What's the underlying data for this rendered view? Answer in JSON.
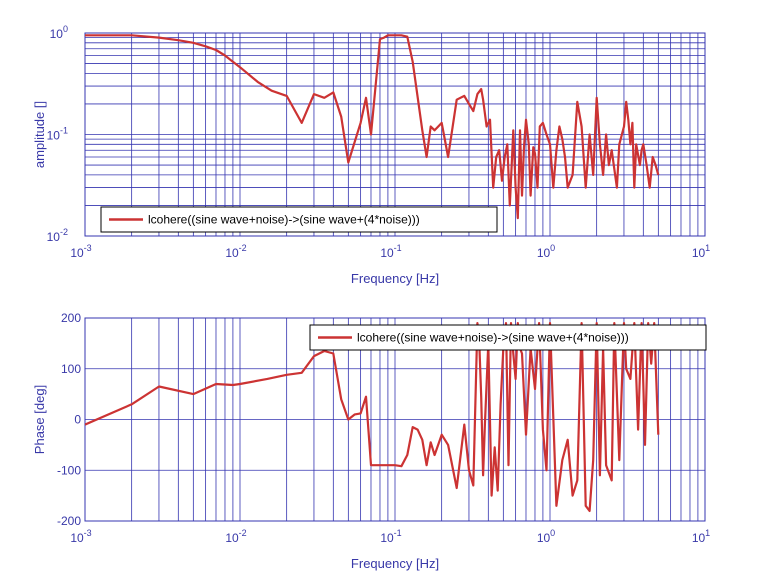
{
  "chart_data": [
    {
      "type": "line",
      "xscale": "log",
      "yscale": "log",
      "xlim": [
        0.001,
        10
      ],
      "ylim": [
        0.01,
        1
      ],
      "grid": true,
      "xlabel": "Frequency  [Hz]",
      "ylabel": "amplitude  []",
      "legend": "bottom-left",
      "xticks": [
        {
          "base": "10",
          "exp": "-3",
          "value": 0.001
        },
        {
          "base": "10",
          "exp": "-2",
          "value": 0.01
        },
        {
          "base": "10",
          "exp": "-1",
          "value": 0.1
        },
        {
          "base": "10",
          "exp": "0",
          "value": 1
        },
        {
          "base": "10",
          "exp": "1",
          "value": 10
        }
      ],
      "yticks": [
        {
          "base": "10",
          "exp": "-2",
          "value": 0.01
        },
        {
          "base": "10",
          "exp": "-1",
          "value": 0.1
        },
        {
          "base": "10",
          "exp": "0",
          "value": 1
        }
      ],
      "series": [
        {
          "name": "lcohere((sine wave+noise)->(sine wave+(4*noise)))",
          "color": "#cc3333",
          "x": [
            0.001,
            0.002,
            0.003,
            0.004,
            0.005,
            0.006,
            0.007,
            0.008,
            0.009,
            0.01,
            0.013,
            0.016,
            0.02,
            0.025,
            0.03,
            0.035,
            0.04,
            0.045,
            0.05,
            0.06,
            0.065,
            0.07,
            0.08,
            0.085,
            0.09,
            0.1,
            0.11,
            0.12,
            0.13,
            0.15,
            0.16,
            0.17,
            0.18,
            0.2,
            0.22,
            0.25,
            0.28,
            0.3,
            0.32,
            0.34,
            0.36,
            0.37,
            0.39,
            0.41,
            0.43,
            0.45,
            0.47,
            0.49,
            0.51,
            0.53,
            0.55,
            0.58,
            0.6,
            0.62,
            0.64,
            0.66,
            0.68,
            0.7,
            0.73,
            0.75,
            0.78,
            0.8,
            0.83,
            0.86,
            0.9,
            0.95,
            1.0,
            1.05,
            1.1,
            1.15,
            1.2,
            1.25,
            1.3,
            1.4,
            1.5,
            1.6,
            1.7,
            1.8,
            1.9,
            2.0,
            2.1,
            2.2,
            2.3,
            2.4,
            2.5,
            2.7,
            2.8,
            3.0,
            3.1,
            3.2,
            3.3,
            3.4,
            3.5,
            3.6,
            3.8,
            3.9,
            4.0,
            4.2,
            4.4,
            4.6,
            4.8,
            5.0
          ],
          "values": [
            0.95,
            0.95,
            0.9,
            0.85,
            0.8,
            0.74,
            0.68,
            0.6,
            0.52,
            0.46,
            0.33,
            0.27,
            0.24,
            0.13,
            0.25,
            0.23,
            0.26,
            0.15,
            0.053,
            0.13,
            0.23,
            0.1,
            0.87,
            0.9,
            0.95,
            0.95,
            0.95,
            0.92,
            0.52,
            0.11,
            0.06,
            0.12,
            0.11,
            0.13,
            0.06,
            0.22,
            0.24,
            0.2,
            0.17,
            0.25,
            0.28,
            0.22,
            0.12,
            0.14,
            0.03,
            0.06,
            0.07,
            0.035,
            0.06,
            0.08,
            0.02,
            0.11,
            0.03,
            0.015,
            0.11,
            0.025,
            0.075,
            0.14,
            0.08,
            0.025,
            0.075,
            0.065,
            0.03,
            0.12,
            0.13,
            0.1,
            0.08,
            0.03,
            0.07,
            0.12,
            0.09,
            0.06,
            0.03,
            0.04,
            0.21,
            0.12,
            0.03,
            0.1,
            0.04,
            0.23,
            0.08,
            0.04,
            0.1,
            0.05,
            0.07,
            0.03,
            0.08,
            0.12,
            0.21,
            0.14,
            0.08,
            0.13,
            0.03,
            0.08,
            0.05,
            0.07,
            0.08,
            0.05,
            0.03,
            0.06,
            0.05,
            0.04
          ]
        }
      ]
    },
    {
      "type": "line",
      "xscale": "log",
      "yscale": "linear",
      "xlim": [
        0.001,
        10
      ],
      "ylim": [
        -200,
        200
      ],
      "grid": true,
      "xlabel": "Frequency  [Hz]",
      "ylabel": "Phase [deg]",
      "legend": "top-right",
      "xticks": [
        {
          "base": "10",
          "exp": "-3",
          "value": 0.001
        },
        {
          "base": "10",
          "exp": "-2",
          "value": 0.01
        },
        {
          "base": "10",
          "exp": "-1",
          "value": 0.1
        },
        {
          "base": "10",
          "exp": "0",
          "value": 1
        },
        {
          "base": "10",
          "exp": "1",
          "value": 10
        }
      ],
      "yticks": [
        {
          "label": "200",
          "value": 200
        },
        {
          "label": "100",
          "value": 100
        },
        {
          "label": "0",
          "value": 0
        },
        {
          "label": "-100",
          "value": -100
        },
        {
          "label": "-200",
          "value": -200
        }
      ],
      "series": [
        {
          "name": "lcohere((sine wave+noise)->(sine wave+(4*noise)))",
          "color": "#cc3333",
          "x": [
            0.001,
            0.002,
            0.003,
            0.005,
            0.007,
            0.009,
            0.01,
            0.015,
            0.02,
            0.025,
            0.03,
            0.035,
            0.04,
            0.045,
            0.05,
            0.055,
            0.06,
            0.065,
            0.07,
            0.08,
            0.09,
            0.1,
            0.11,
            0.12,
            0.13,
            0.14,
            0.15,
            0.16,
            0.17,
            0.18,
            0.2,
            0.22,
            0.25,
            0.28,
            0.3,
            0.32,
            0.34,
            0.35,
            0.36,
            0.37,
            0.38,
            0.4,
            0.42,
            0.44,
            0.46,
            0.48,
            0.5,
            0.52,
            0.54,
            0.56,
            0.58,
            0.6,
            0.62,
            0.64,
            0.66,
            0.7,
            0.75,
            0.8,
            0.85,
            0.9,
            0.95,
            1.0,
            1.1,
            1.2,
            1.3,
            1.4,
            1.5,
            1.6,
            1.7,
            1.8,
            1.9,
            2.0,
            2.1,
            2.2,
            2.3,
            2.5,
            2.6,
            2.8,
            3.0,
            3.1,
            3.3,
            3.5,
            3.7,
            3.9,
            4.1,
            4.3,
            4.5,
            4.7,
            5.0
          ],
          "values": [
            -10,
            30,
            65,
            50,
            70,
            68,
            70,
            80,
            88,
            92,
            125,
            135,
            130,
            40,
            0,
            10,
            12,
            45,
            -90,
            -90,
            -90,
            -90,
            -92,
            -70,
            -15,
            -20,
            -40,
            -90,
            -45,
            -70,
            -30,
            -50,
            -135,
            -10,
            -100,
            -130,
            190,
            150,
            45,
            -110,
            -10,
            150,
            -150,
            -55,
            -140,
            30,
            140,
            190,
            -90,
            190,
            130,
            80,
            190,
            140,
            130,
            -30,
            140,
            60,
            190,
            -20,
            -100,
            190,
            -170,
            -80,
            -40,
            -150,
            -120,
            190,
            -170,
            -180,
            -80,
            190,
            -110,
            140,
            -90,
            -120,
            190,
            -80,
            190,
            100,
            80,
            190,
            -20,
            190,
            -50,
            190,
            110,
            190,
            -30
          ]
        }
      ]
    }
  ]
}
